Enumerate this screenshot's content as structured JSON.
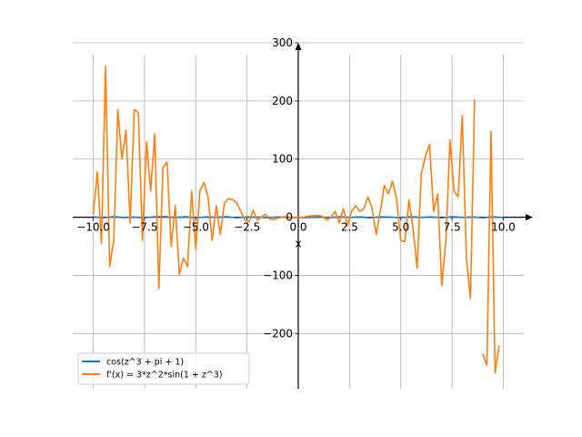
{
  "chart_data": {
    "type": "line",
    "title": "",
    "xlabel": "x",
    "ylabel": "",
    "xlim": [
      -11.0,
      11.0
    ],
    "ylim": [
      -295,
      300
    ],
    "grid": true,
    "legend_position": "lower-left",
    "x_ticks": [
      -10.0,
      -7.5,
      -5.0,
      -2.5,
      0.0,
      2.5,
      5.0,
      7.5,
      10.0
    ],
    "x_tick_labels": [
      "−10.0",
      "−7.5",
      "−5.0",
      "−2.5",
      "0.0",
      "2.5",
      "5.0",
      "7.5",
      "10.0"
    ],
    "y_ticks": [
      -200,
      -100,
      0,
      100,
      200,
      300
    ],
    "y_tick_labels": [
      "−200",
      "−100",
      "0",
      "100",
      "200",
      "300"
    ],
    "series": [
      {
        "name": "cos(z^3 + pi + 1)",
        "color": "#1f77b4",
        "x": [
          -10,
          -9.5,
          -9,
          -8.5,
          -8,
          -7.5,
          -7,
          -6.5,
          -6,
          -5.5,
          -5,
          -4.5,
          -4,
          -3.5,
          -3,
          -2.5,
          -2,
          -1.5,
          -1,
          -0.5,
          0,
          0.5,
          1,
          1.5,
          2,
          2.5,
          3,
          3.5,
          4,
          4.5,
          5,
          5.5,
          6,
          6.5,
          7,
          7.5,
          8,
          8.5,
          9,
          9.5,
          10
        ],
        "y": [
          0.6,
          -0.8,
          0.9,
          -0.5,
          0.3,
          -0.9,
          0.7,
          1.0,
          -0.6,
          0.8,
          -0.9,
          0.4,
          -0.2,
          0.9,
          -1.0,
          0.5,
          0.3,
          -0.7,
          0.4,
          -0.5,
          -0.54,
          -0.6,
          0.4,
          -0.8,
          0.9,
          -0.3,
          0.6,
          -0.9,
          0.7,
          0.2,
          -0.8,
          0.9,
          -0.4,
          0.6,
          -1.0,
          0.8,
          -0.3,
          0.5,
          -0.9,
          0.7,
          -0.6
        ]
      },
      {
        "name": "f'(x) = 3*z^2*sin(1 + z^3)",
        "color": "#ff7f0e",
        "x": [
          -10.0,
          -9.8,
          -9.6,
          -9.4,
          -9.2,
          -9.0,
          -8.8,
          -8.6,
          -8.4,
          -8.2,
          -8.0,
          -7.8,
          -7.6,
          -7.4,
          -7.2,
          -7.0,
          -6.8,
          -6.6,
          -6.4,
          -6.2,
          -6.0,
          -5.8,
          -5.6,
          -5.4,
          -5.2,
          -5.0,
          -4.8,
          -4.6,
          -4.4,
          -4.2,
          -4.0,
          -3.8,
          -3.6,
          -3.4,
          -3.2,
          -3.0,
          -2.8,
          -2.6,
          -2.4,
          -2.2,
          -2.0,
          -1.8,
          -1.6,
          -1.4,
          -1.2,
          -1.0,
          -0.8,
          -0.6,
          -0.4,
          -0.2,
          0.0,
          0.2,
          0.4,
          0.6,
          0.8,
          1.0,
          1.2,
          1.4,
          1.6,
          1.8,
          2.0,
          2.2,
          2.4,
          2.6,
          2.8,
          3.0,
          3.2,
          3.4,
          3.6,
          3.8,
          4.0,
          4.2,
          4.4,
          4.6,
          4.8,
          5.0,
          5.2,
          5.4,
          5.6,
          5.8,
          6.0,
          6.2,
          6.4,
          6.6,
          6.8,
          7.0,
          7.2,
          7.4,
          7.6,
          7.8,
          8.0,
          8.2,
          8.4,
          8.6,
          8.8,
          9.0,
          9.2,
          9.4,
          9.6,
          9.8,
          10.0
        ],
        "y": [
          5,
          78,
          -45,
          260,
          -85,
          -40,
          185,
          100,
          150,
          -10,
          185,
          180,
          -40,
          130,
          45,
          143,
          -123,
          85,
          95,
          -50,
          20,
          -98,
          -70,
          -85,
          45,
          -55,
          45,
          60,
          35,
          -40,
          20,
          -30,
          25,
          32,
          30,
          25,
          10,
          -5,
          -8,
          12,
          -5,
          0,
          5,
          -3,
          -4,
          -2,
          0,
          1,
          0,
          0,
          0,
          0,
          1,
          2,
          3,
          3,
          1,
          -5,
          0,
          10,
          -10,
          15,
          -15,
          10,
          20,
          10,
          15,
          35,
          15,
          -30,
          10,
          55,
          40,
          62,
          30,
          -40,
          -42,
          30,
          -20,
          -88,
          75,
          105,
          125,
          10,
          40,
          -118,
          -40,
          133,
          45,
          35,
          175,
          -70,
          -140,
          203,
          null,
          -235,
          -255,
          148,
          -268,
          -220,
          null
        ]
      }
    ]
  }
}
